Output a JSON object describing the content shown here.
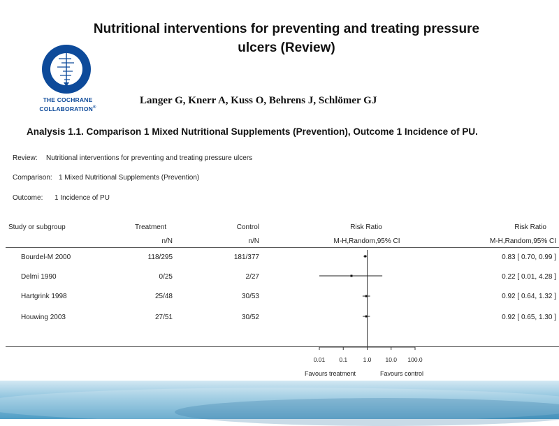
{
  "header": {
    "title_line1": "Nutritional interventions for preventing and treating pressure",
    "title_line2": "ulcers (Review)",
    "authors": "Langer G, Knerr A, Kuss O, Behrens J, Schlömer GJ",
    "logo": {
      "org_line1": "THE COCHRANE",
      "org_line2": "COLLABORATION",
      "mark": "®",
      "color": "#0d4a9a"
    }
  },
  "analysis": {
    "title": "Analysis 1.1.   Comparison 1 Mixed Nutritional Supplements (Prevention), Outcome 1 Incidence of PU.",
    "review_label": "Review:",
    "review_value": "Nutritional interventions for preventing and treating pressure ulcers",
    "comparison_label": "Comparison:",
    "comparison_value": "1 Mixed Nutritional Supplements (Prevention)",
    "outcome_label": "Outcome:",
    "outcome_value": "1 Incidence of PU"
  },
  "table": {
    "columns": {
      "study": "Study or subgroup",
      "treatment": "Treatment",
      "treatment_sub": "n/N",
      "control": "Control",
      "control_sub": "n/N",
      "plot": "Risk Ratio",
      "plot_sub": "M-H,Random,95% CI",
      "rr": "Risk Ratio",
      "rr_sub": "M-H,Random,95% CI"
    },
    "rows": [
      {
        "study": "Bourdel-M 2000",
        "treatment": "118/295",
        "control": "181/377",
        "rr_text": "0.83 [ 0.70, 0.99 ]",
        "rr": 0.83,
        "lo": 0.7,
        "hi": 0.99
      },
      {
        "study": "Delmi 1990",
        "treatment": "0/25",
        "control": "2/27",
        "rr_text": "0.22 [ 0.01, 4.28 ]",
        "rr": 0.22,
        "lo": 0.01,
        "hi": 4.28
      },
      {
        "study": "Hartgrink 1998",
        "treatment": "25/48",
        "control": "30/53",
        "rr_text": "0.92 [ 0.64, 1.32 ]",
        "rr": 0.92,
        "lo": 0.64,
        "hi": 1.32
      },
      {
        "study": "Houwing 2003",
        "treatment": "27/51",
        "control": "30/52",
        "rr_text": "0.92 [ 0.65, 1.30 ]",
        "rr": 0.92,
        "lo": 0.65,
        "hi": 1.3
      }
    ],
    "axis": {
      "ticks": [
        0.01,
        0.1,
        1,
        10,
        100
      ],
      "tick_labels": [
        "0.01",
        "0.1",
        "1.0",
        "10.0",
        "100.0"
      ],
      "favours_left": "Favours treatment",
      "favours_right": "Favours control",
      "scale": "log"
    }
  },
  "chart_data": {
    "type": "scatter",
    "scale": "log",
    "categories": [
      "Bourdel-M 2000",
      "Delmi 1990",
      "Hartgrink 1998",
      "Houwing 2003"
    ],
    "values": [
      0.83,
      0.22,
      0.92,
      0.92
    ],
    "ci_lower": [
      0.7,
      0.01,
      0.64,
      0.65
    ],
    "ci_upper": [
      0.99,
      4.28,
      1.32,
      1.3
    ],
    "xlim": [
      0.01,
      100
    ],
    "reference_line": 1.0
  }
}
